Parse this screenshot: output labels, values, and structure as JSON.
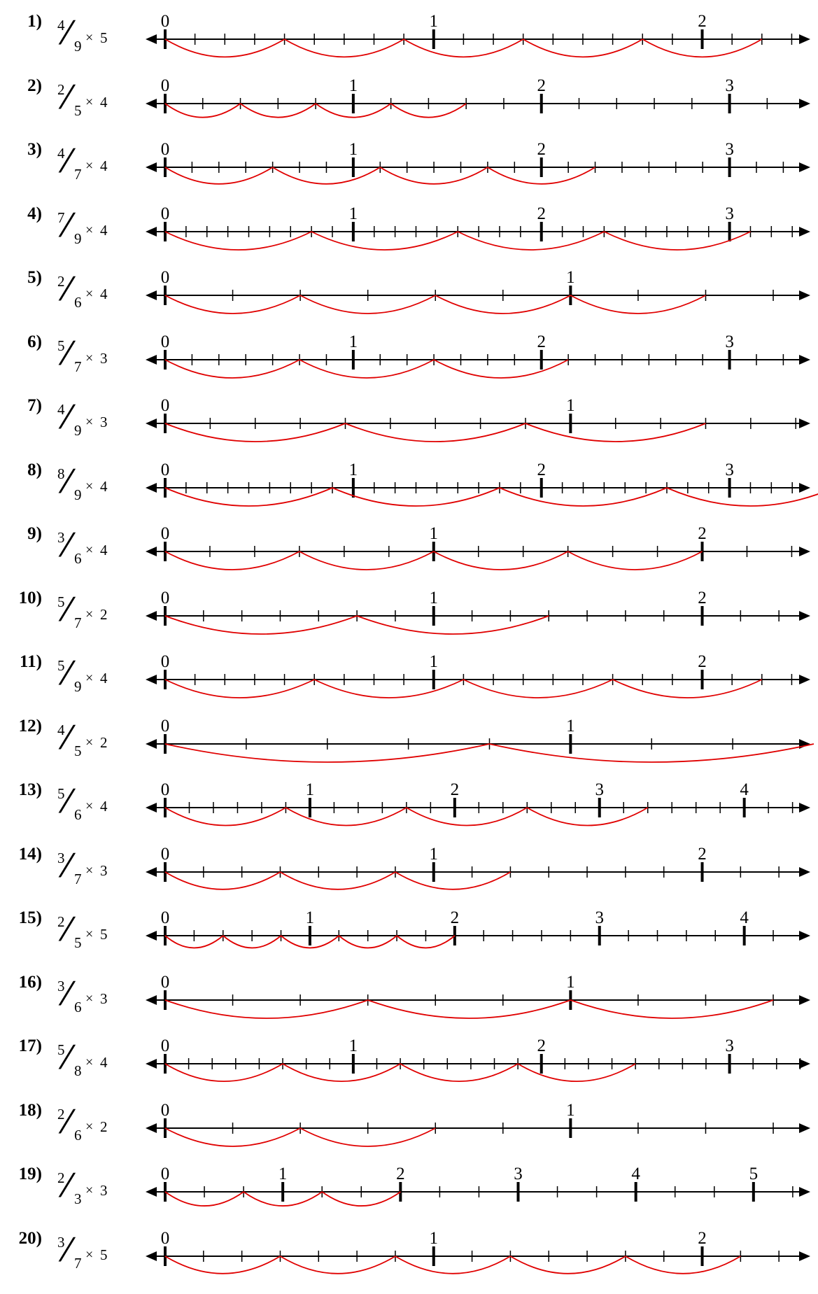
{
  "problems": [
    {
      "num": "1)",
      "n": 4,
      "d": 9,
      "m": 5,
      "times": "×",
      "labels": [
        "0",
        "1",
        "2"
      ]
    },
    {
      "num": "2)",
      "n": 2,
      "d": 5,
      "m": 4,
      "times": "×",
      "labels": [
        "0",
        "1",
        "2",
        "3"
      ]
    },
    {
      "num": "3)",
      "n": 4,
      "d": 7,
      "m": 4,
      "times": "×",
      "labels": [
        "0",
        "1",
        "2",
        "3"
      ]
    },
    {
      "num": "4)",
      "n": 7,
      "d": 9,
      "m": 4,
      "times": "×",
      "labels": [
        "0",
        "1",
        "2",
        "3"
      ]
    },
    {
      "num": "5)",
      "n": 2,
      "d": 6,
      "m": 4,
      "times": "×",
      "labels": [
        "0",
        "1"
      ]
    },
    {
      "num": "6)",
      "n": 5,
      "d": 7,
      "m": 3,
      "times": "×",
      "labels": [
        "0",
        "1",
        "2",
        "3"
      ]
    },
    {
      "num": "7)",
      "n": 4,
      "d": 9,
      "m": 3,
      "times": "×",
      "labels": [
        "0",
        "1"
      ]
    },
    {
      "num": "8)",
      "n": 8,
      "d": 9,
      "m": 4,
      "times": "×",
      "labels": [
        "0",
        "1",
        "2",
        "3"
      ]
    },
    {
      "num": "9)",
      "n": 3,
      "d": 6,
      "m": 4,
      "times": "×",
      "labels": [
        "0",
        "1",
        "2"
      ]
    },
    {
      "num": "10)",
      "n": 5,
      "d": 7,
      "m": 2,
      "times": "×",
      "labels": [
        "0",
        "1",
        "2"
      ]
    },
    {
      "num": "11)",
      "n": 5,
      "d": 9,
      "m": 4,
      "times": "×",
      "labels": [
        "0",
        "1",
        "2"
      ]
    },
    {
      "num": "12)",
      "n": 4,
      "d": 5,
      "m": 2,
      "times": "×",
      "labels": [
        "0",
        "1"
      ]
    },
    {
      "num": "13)",
      "n": 5,
      "d": 6,
      "m": 4,
      "times": "×",
      "labels": [
        "0",
        "1",
        "2",
        "3",
        "4"
      ]
    },
    {
      "num": "14)",
      "n": 3,
      "d": 7,
      "m": 3,
      "times": "×",
      "labels": [
        "0",
        "1",
        "2"
      ]
    },
    {
      "num": "15)",
      "n": 2,
      "d": 5,
      "m": 5,
      "times": "×",
      "labels": [
        "0",
        "1",
        "2",
        "3",
        "4"
      ]
    },
    {
      "num": "16)",
      "n": 3,
      "d": 6,
      "m": 3,
      "times": "×",
      "labels": [
        "0",
        "1"
      ]
    },
    {
      "num": "17)",
      "n": 5,
      "d": 8,
      "m": 4,
      "times": "×",
      "labels": [
        "0",
        "1",
        "2",
        "3"
      ]
    },
    {
      "num": "18)",
      "n": 2,
      "d": 6,
      "m": 2,
      "times": "×",
      "labels": [
        "0",
        "1"
      ]
    },
    {
      "num": "19)",
      "n": 2,
      "d": 3,
      "m": 3,
      "times": "×",
      "labels": [
        "0",
        "1",
        "2",
        "3",
        "4",
        "5"
      ]
    },
    {
      "num": "20)",
      "n": 3,
      "d": 7,
      "m": 5,
      "times": "×",
      "labels": [
        "0",
        "1",
        "2"
      ]
    }
  ],
  "colors": {
    "line": "#000000",
    "jumps": "#e00000"
  }
}
